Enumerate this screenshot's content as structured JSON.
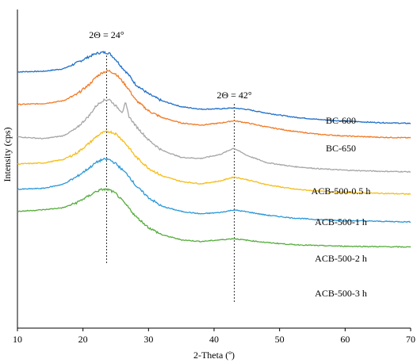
{
  "chart_data": {
    "type": "line",
    "xlabel": "2-Theta (º)",
    "ylabel": "Intensity (cps)",
    "xlim": [
      10,
      70
    ],
    "xticks": [
      "10",
      "20",
      "30",
      "40",
      "50",
      "60",
      "70"
    ],
    "ylim": [
      0,
      100
    ],
    "grid": false,
    "legend": "labels placed next to each curve on the right",
    "annotations": [
      {
        "text": "2Θ = 24°",
        "x": 23.6
      },
      {
        "text": "2Θ = 42°",
        "x": 43.1
      }
    ],
    "series": [
      {
        "name": "BC-600",
        "color": "#1f6fc8",
        "x": [
          10,
          14,
          17,
          19,
          21,
          22,
          23,
          24,
          25,
          26,
          27,
          28,
          30,
          32,
          35,
          38,
          41,
          43,
          45,
          48,
          52,
          56,
          60,
          65,
          70
        ],
        "y": [
          80.5,
          80.8,
          82.0,
          84.8,
          88.0,
          89.4,
          90.0,
          89.6,
          86.5,
          82.5,
          79.0,
          74.5,
          69.8,
          66.5,
          63.6,
          62.4,
          62.6,
          63.0,
          62.3,
          60.5,
          58.6,
          57.4,
          56.6,
          55.9,
          55.5
        ]
      },
      {
        "name": "BC-650",
        "color": "#f07a26",
        "x": [
          10,
          14,
          17,
          19,
          21,
          22,
          23,
          24,
          25,
          26,
          27,
          28,
          30,
          32,
          35,
          38,
          41,
          43,
          45,
          48,
          52,
          56,
          60,
          65,
          70
        ],
        "y": [
          64.7,
          65.1,
          66.5,
          69.5,
          74.5,
          78.0,
          80.3,
          81.0,
          79.5,
          76.0,
          72.0,
          67.0,
          61.6,
          58.4,
          55.7,
          54.7,
          55.7,
          56.8,
          55.8,
          53.8,
          51.7,
          50.2,
          49.4,
          48.8,
          48.5
        ]
      },
      {
        "name": "BC-650 (gray)",
        "color": "#a6a6a6",
        "x": [
          10,
          14,
          17,
          19,
          21,
          22,
          23,
          24,
          25,
          26,
          26.5,
          27,
          28,
          30,
          32,
          35,
          38,
          41,
          43,
          45,
          48,
          52,
          56,
          60,
          65,
          70
        ],
        "y": [
          49.0,
          48.1,
          49.5,
          53.0,
          59.5,
          64.0,
          66.6,
          67.2,
          64.0,
          61.0,
          65.5,
          59.0,
          54.5,
          47.5,
          42.5,
          39.0,
          38.5,
          40.5,
          43.5,
          40.0,
          36.5,
          34.6,
          33.5,
          32.8,
          32.3,
          32.0
        ]
      },
      {
        "name": "ACB-500-0.5 h",
        "color": "#f5bd17",
        "x": [
          10,
          14,
          17,
          19,
          21,
          22,
          23,
          24,
          25,
          26,
          27,
          28,
          30,
          32,
          35,
          38,
          41,
          43,
          45,
          48,
          52,
          56,
          60,
          65,
          70
        ],
        "y": [
          35.8,
          36.3,
          38.0,
          41.0,
          46.0,
          49.0,
          51.0,
          51.6,
          50.5,
          47.5,
          43.8,
          39.5,
          33.8,
          30.1,
          27.3,
          26.2,
          27.6,
          29.5,
          28.2,
          25.8,
          23.7,
          22.6,
          22.0,
          21.6,
          21.2
        ]
      },
      {
        "name": "ACB-500-1 h",
        "color": "#2a98d8",
        "x": [
          10,
          14,
          17,
          19,
          21,
          22,
          23,
          24,
          25,
          26,
          27,
          28,
          30,
          32,
          35,
          38,
          41,
          43,
          45,
          48,
          52,
          56,
          60,
          65,
          70
        ],
        "y": [
          23.5,
          24.0,
          26.0,
          29.5,
          34.0,
          36.5,
          38.0,
          38.0,
          36.0,
          33.0,
          30.0,
          25.5,
          19.5,
          15.3,
          12.8,
          11.6,
          12.3,
          13.5,
          12.6,
          11.0,
          9.6,
          8.8,
          8.3,
          8.0,
          7.7
        ]
      },
      {
        "name": "ACB-500-2 h",
        "color": "#55ad3c",
        "x": [
          10,
          14,
          17,
          19,
          21,
          22,
          23,
          24,
          25,
          26,
          27,
          28,
          30,
          32,
          35,
          38,
          41,
          43,
          45,
          48,
          52,
          56,
          60,
          65,
          70
        ],
        "y": [
          12.8,
          13.6,
          14.6,
          17.0,
          20.5,
          22.5,
          23.5,
          23.3,
          21.5,
          18.0,
          14.5,
          10.5,
          5.0,
          1.5,
          -1.0,
          -1.8,
          -1.0,
          -0.4,
          -1.2,
          -2.3,
          -3.3,
          -3.8,
          -4.1,
          -4.3,
          -4.5
        ]
      }
    ],
    "labels": [
      "BC-600",
      "BC-650",
      "ACB-500-0.5 h",
      "ACB-500-1 h",
      "ACB-500-2 h",
      "ACB-500-3 h"
    ]
  }
}
